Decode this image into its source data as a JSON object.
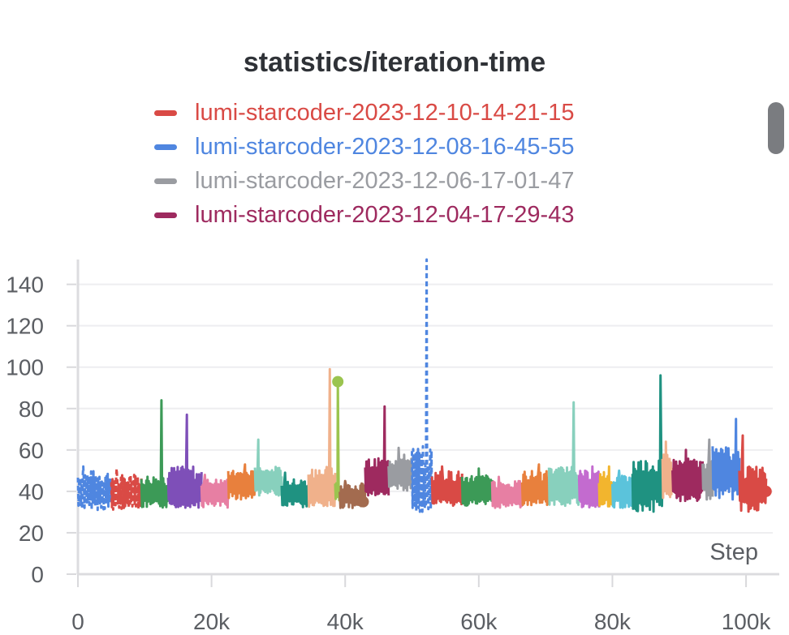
{
  "chart_data": {
    "type": "line",
    "title": "statistics/iteration-time",
    "xlabel": "Step",
    "ylabel": "",
    "xlim": [
      0,
      104000
    ],
    "ylim": [
      0,
      152
    ],
    "x_ticks": [
      0,
      20000,
      40000,
      60000,
      80000,
      100000
    ],
    "x_tick_labels": [
      "0",
      "20k",
      "40k",
      "60k",
      "80k",
      "100k"
    ],
    "y_ticks": [
      0,
      20,
      40,
      60,
      80,
      100,
      120,
      140
    ],
    "y_tick_labels": [
      "0",
      "20",
      "40",
      "60",
      "80",
      "100",
      "120",
      "140"
    ],
    "grid": true,
    "legend_position": "top-center",
    "legend": [
      {
        "name": "lumi-starcoder-2023-12-10-14-21-15",
        "color": "#d94a45"
      },
      {
        "name": "lumi-starcoder-2023-12-08-16-45-55",
        "color": "#4f86e0"
      },
      {
        "name": "lumi-starcoder-2023-12-06-17-01-47",
        "color": "#9a9ca1"
      },
      {
        "name": "lumi-starcoder-2023-12-04-17-29-43",
        "color": "#9e2a5f"
      }
    ],
    "segments": [
      {
        "x_start": 0,
        "x_end": 5000,
        "low": 31,
        "high": 50,
        "mean": 39,
        "peak_x": 800,
        "peak": 52,
        "color": "#4f86e0",
        "dashed": true
      },
      {
        "x_start": 5000,
        "x_end": 9500,
        "low": 31,
        "high": 48,
        "mean": 38,
        "peak_x": 5800,
        "peak": 51,
        "color": "#d94a45",
        "dashed": true
      },
      {
        "x_start": 9500,
        "x_end": 13500,
        "low": 32,
        "high": 48,
        "mean": 38,
        "peak_x": 12500,
        "peak": 84,
        "color": "#3c9a57"
      },
      {
        "x_start": 13500,
        "x_end": 18500,
        "low": 32,
        "high": 52,
        "mean": 39,
        "peak_x": 16300,
        "peak": 77,
        "color": "#7e4fb8"
      },
      {
        "x_start": 18500,
        "x_end": 22500,
        "low": 32,
        "high": 46,
        "mean": 39,
        "peak_x": 19000,
        "peak": 48,
        "color": "#e77fa3"
      },
      {
        "x_start": 22500,
        "x_end": 26500,
        "low": 36,
        "high": 50,
        "mean": 43,
        "peak_x": 25000,
        "peak": 53,
        "color": "#e8803d"
      },
      {
        "x_start": 26500,
        "x_end": 30500,
        "low": 38,
        "high": 52,
        "mean": 44,
        "peak_x": 27000,
        "peak": 65,
        "color": "#88d0bd"
      },
      {
        "x_start": 30500,
        "x_end": 34500,
        "low": 32,
        "high": 46,
        "mean": 38,
        "peak_x": 31000,
        "peak": 49,
        "color": "#1f9281"
      },
      {
        "x_start": 34500,
        "x_end": 38500,
        "low": 32,
        "high": 52,
        "mean": 40,
        "peak_x": 37700,
        "peak": 99,
        "color": "#f0b18b"
      },
      {
        "x_start": 38500,
        "x_end": 39200,
        "low": 34,
        "high": 45,
        "mean": 40,
        "peak_x": 38900,
        "peak": 93,
        "color": "#9bc44f"
      },
      {
        "x_start": 39200,
        "x_end": 43000,
        "low": 32,
        "high": 44,
        "mean": 37,
        "peak_x": 40000,
        "peak": 45,
        "color": "#a36b4f"
      },
      {
        "x_start": 43000,
        "x_end": 46500,
        "low": 38,
        "high": 56,
        "mean": 45,
        "peak_x": 45900,
        "peak": 81,
        "color": "#9e2a5f"
      },
      {
        "x_start": 46500,
        "x_end": 50000,
        "low": 40,
        "high": 58,
        "mean": 47,
        "peak_x": 48000,
        "peak": 61,
        "color": "#9a9ca1"
      },
      {
        "x_start": 50000,
        "x_end": 53000,
        "low": 30,
        "high": 62,
        "mean": 42,
        "peak_x": 52200,
        "peak": 152,
        "color": "#4f86e0",
        "dashed": true
      },
      {
        "x_start": 53000,
        "x_end": 57500,
        "low": 33,
        "high": 50,
        "mean": 40,
        "peak_x": 54500,
        "peak": 52,
        "color": "#d94a45"
      },
      {
        "x_start": 57500,
        "x_end": 62000,
        "low": 33,
        "high": 48,
        "mean": 40,
        "peak_x": 60000,
        "peak": 51,
        "color": "#3c9a57"
      },
      {
        "x_start": 62000,
        "x_end": 66500,
        "low": 32,
        "high": 45,
        "mean": 38,
        "peak_x": 63000,
        "peak": 47,
        "color": "#e77fa3"
      },
      {
        "x_start": 66500,
        "x_end": 70500,
        "low": 33,
        "high": 50,
        "mean": 40,
        "peak_x": 69000,
        "peak": 53,
        "color": "#e8803d"
      },
      {
        "x_start": 70500,
        "x_end": 75000,
        "low": 33,
        "high": 52,
        "mean": 41,
        "peak_x": 74200,
        "peak": 83,
        "color": "#88d0bd"
      },
      {
        "x_start": 75000,
        "x_end": 78000,
        "low": 32,
        "high": 50,
        "mean": 40,
        "peak_x": 77000,
        "peak": 52,
        "color": "#c36bcf"
      },
      {
        "x_start": 78000,
        "x_end": 80000,
        "low": 32,
        "high": 50,
        "mean": 39,
        "peak_x": 79500,
        "peak": 52,
        "color": "#f2b52e"
      },
      {
        "x_start": 80000,
        "x_end": 83000,
        "low": 32,
        "high": 48,
        "mean": 40,
        "peak_x": 81000,
        "peak": 50,
        "color": "#5bc3db"
      },
      {
        "x_start": 83000,
        "x_end": 87500,
        "low": 30,
        "high": 56,
        "mean": 42,
        "peak_x": 87200,
        "peak": 96,
        "color": "#1f9281"
      },
      {
        "x_start": 87500,
        "x_end": 89000,
        "low": 36,
        "high": 58,
        "mean": 45,
        "peak_x": 88000,
        "peak": 64,
        "color": "#f0b18b"
      },
      {
        "x_start": 89000,
        "x_end": 93500,
        "low": 35,
        "high": 56,
        "mean": 44,
        "peak_x": 91000,
        "peak": 60,
        "color": "#9e2a5f"
      },
      {
        "x_start": 93500,
        "x_end": 95000,
        "low": 36,
        "high": 55,
        "mean": 45,
        "peak_x": 94500,
        "peak": 65,
        "color": "#9a9ca1"
      },
      {
        "x_start": 95000,
        "x_end": 99000,
        "low": 36,
        "high": 62,
        "mean": 47,
        "peak_x": 98500,
        "peak": 75,
        "color": "#4f86e0"
      },
      {
        "x_start": 99000,
        "x_end": 103000,
        "low": 30,
        "high": 52,
        "mean": 40,
        "peak_x": 99500,
        "peak": 67,
        "color": "#d94a45"
      }
    ],
    "markers": [
      {
        "x": 38900,
        "y": 93,
        "color": "#9bc44f"
      },
      {
        "x": 42700,
        "y": 35,
        "color": "#a36b4f"
      },
      {
        "x": 103000,
        "y": 40,
        "color": "#d94a45"
      }
    ]
  }
}
